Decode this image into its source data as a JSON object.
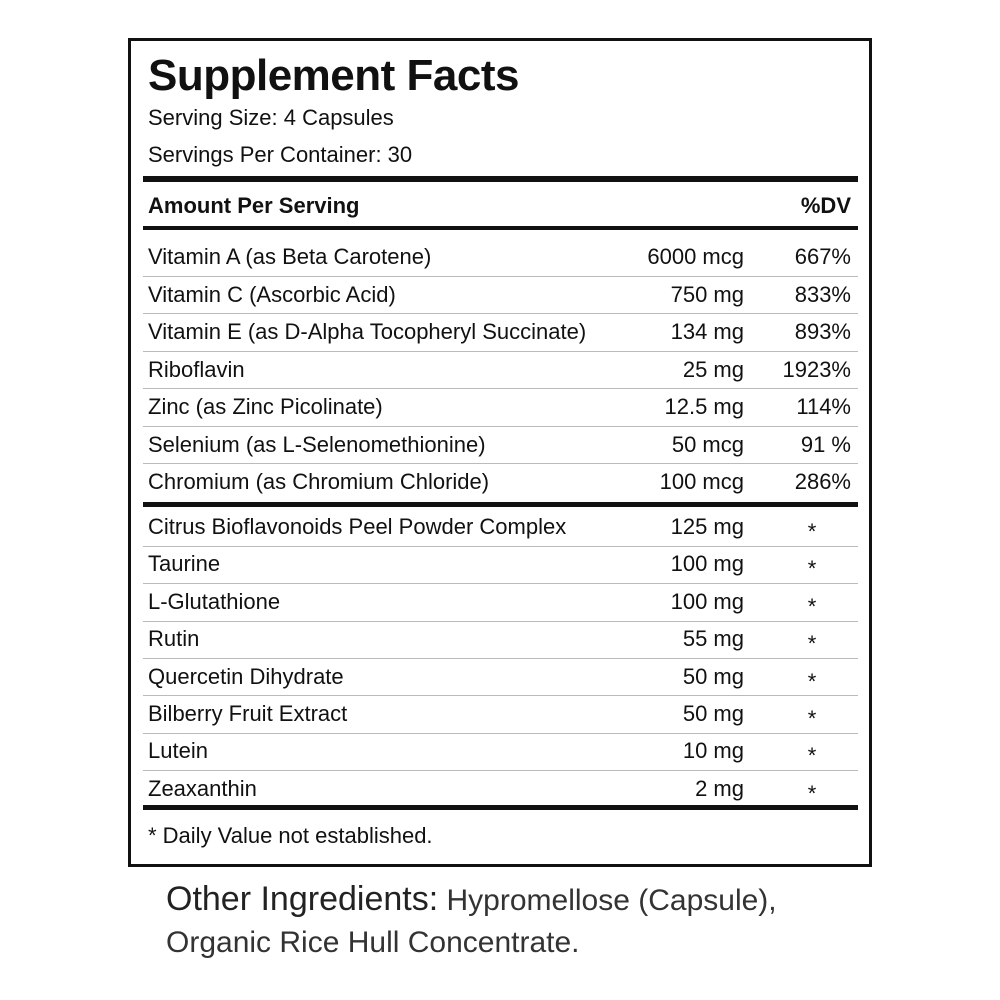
{
  "header": {
    "title": "Supplement Facts",
    "serving_size": "Serving Size: 4 Capsules",
    "servings_per_container": "Servings Per Container: 30"
  },
  "table": {
    "columns": [
      "Amount Per Serving",
      "%DV"
    ],
    "vitamins": [
      [
        "Vitamin A (as Beta Carotene)",
        "6000 mcg",
        "667%"
      ],
      [
        "Vitamin C (Ascorbic Acid)",
        "750 mg",
        "833%"
      ],
      [
        "Vitamin E (as D-Alpha Tocopheryl Succinate)",
        "134 mg",
        "893%"
      ],
      [
        "Riboflavin",
        "25 mg",
        "1923%"
      ],
      [
        "Zinc (as Zinc Picolinate)",
        "12.5 mg",
        "114%"
      ],
      [
        "Selenium (as L-Selenomethionine)",
        "50 mcg",
        "91 %"
      ],
      [
        "Chromium (as Chromium Chloride)",
        "100 mcg",
        "286%"
      ]
    ],
    "others": [
      [
        "Citrus Bioflavonoids Peel Powder Complex",
        "125 mg",
        "*"
      ],
      [
        "Taurine",
        "100 mg",
        "*"
      ],
      [
        "L-Glutathione",
        "100 mg",
        "*"
      ],
      [
        "Rutin",
        "55 mg",
        "*"
      ],
      [
        "Quercetin Dihydrate",
        "50 mg",
        "*"
      ],
      [
        "Bilberry Fruit Extract",
        "50 mg",
        "*"
      ],
      [
        "Lutein",
        "10 mg",
        "*"
      ],
      [
        "Zeaxanthin",
        "2 mg",
        "*"
      ]
    ]
  },
  "footnote": "* Daily Value not established.",
  "other_ingredients": {
    "label": "Other Ingredients:",
    "text": "Hypromellose (Capsule), Organic Rice Hull Concentrate."
  }
}
